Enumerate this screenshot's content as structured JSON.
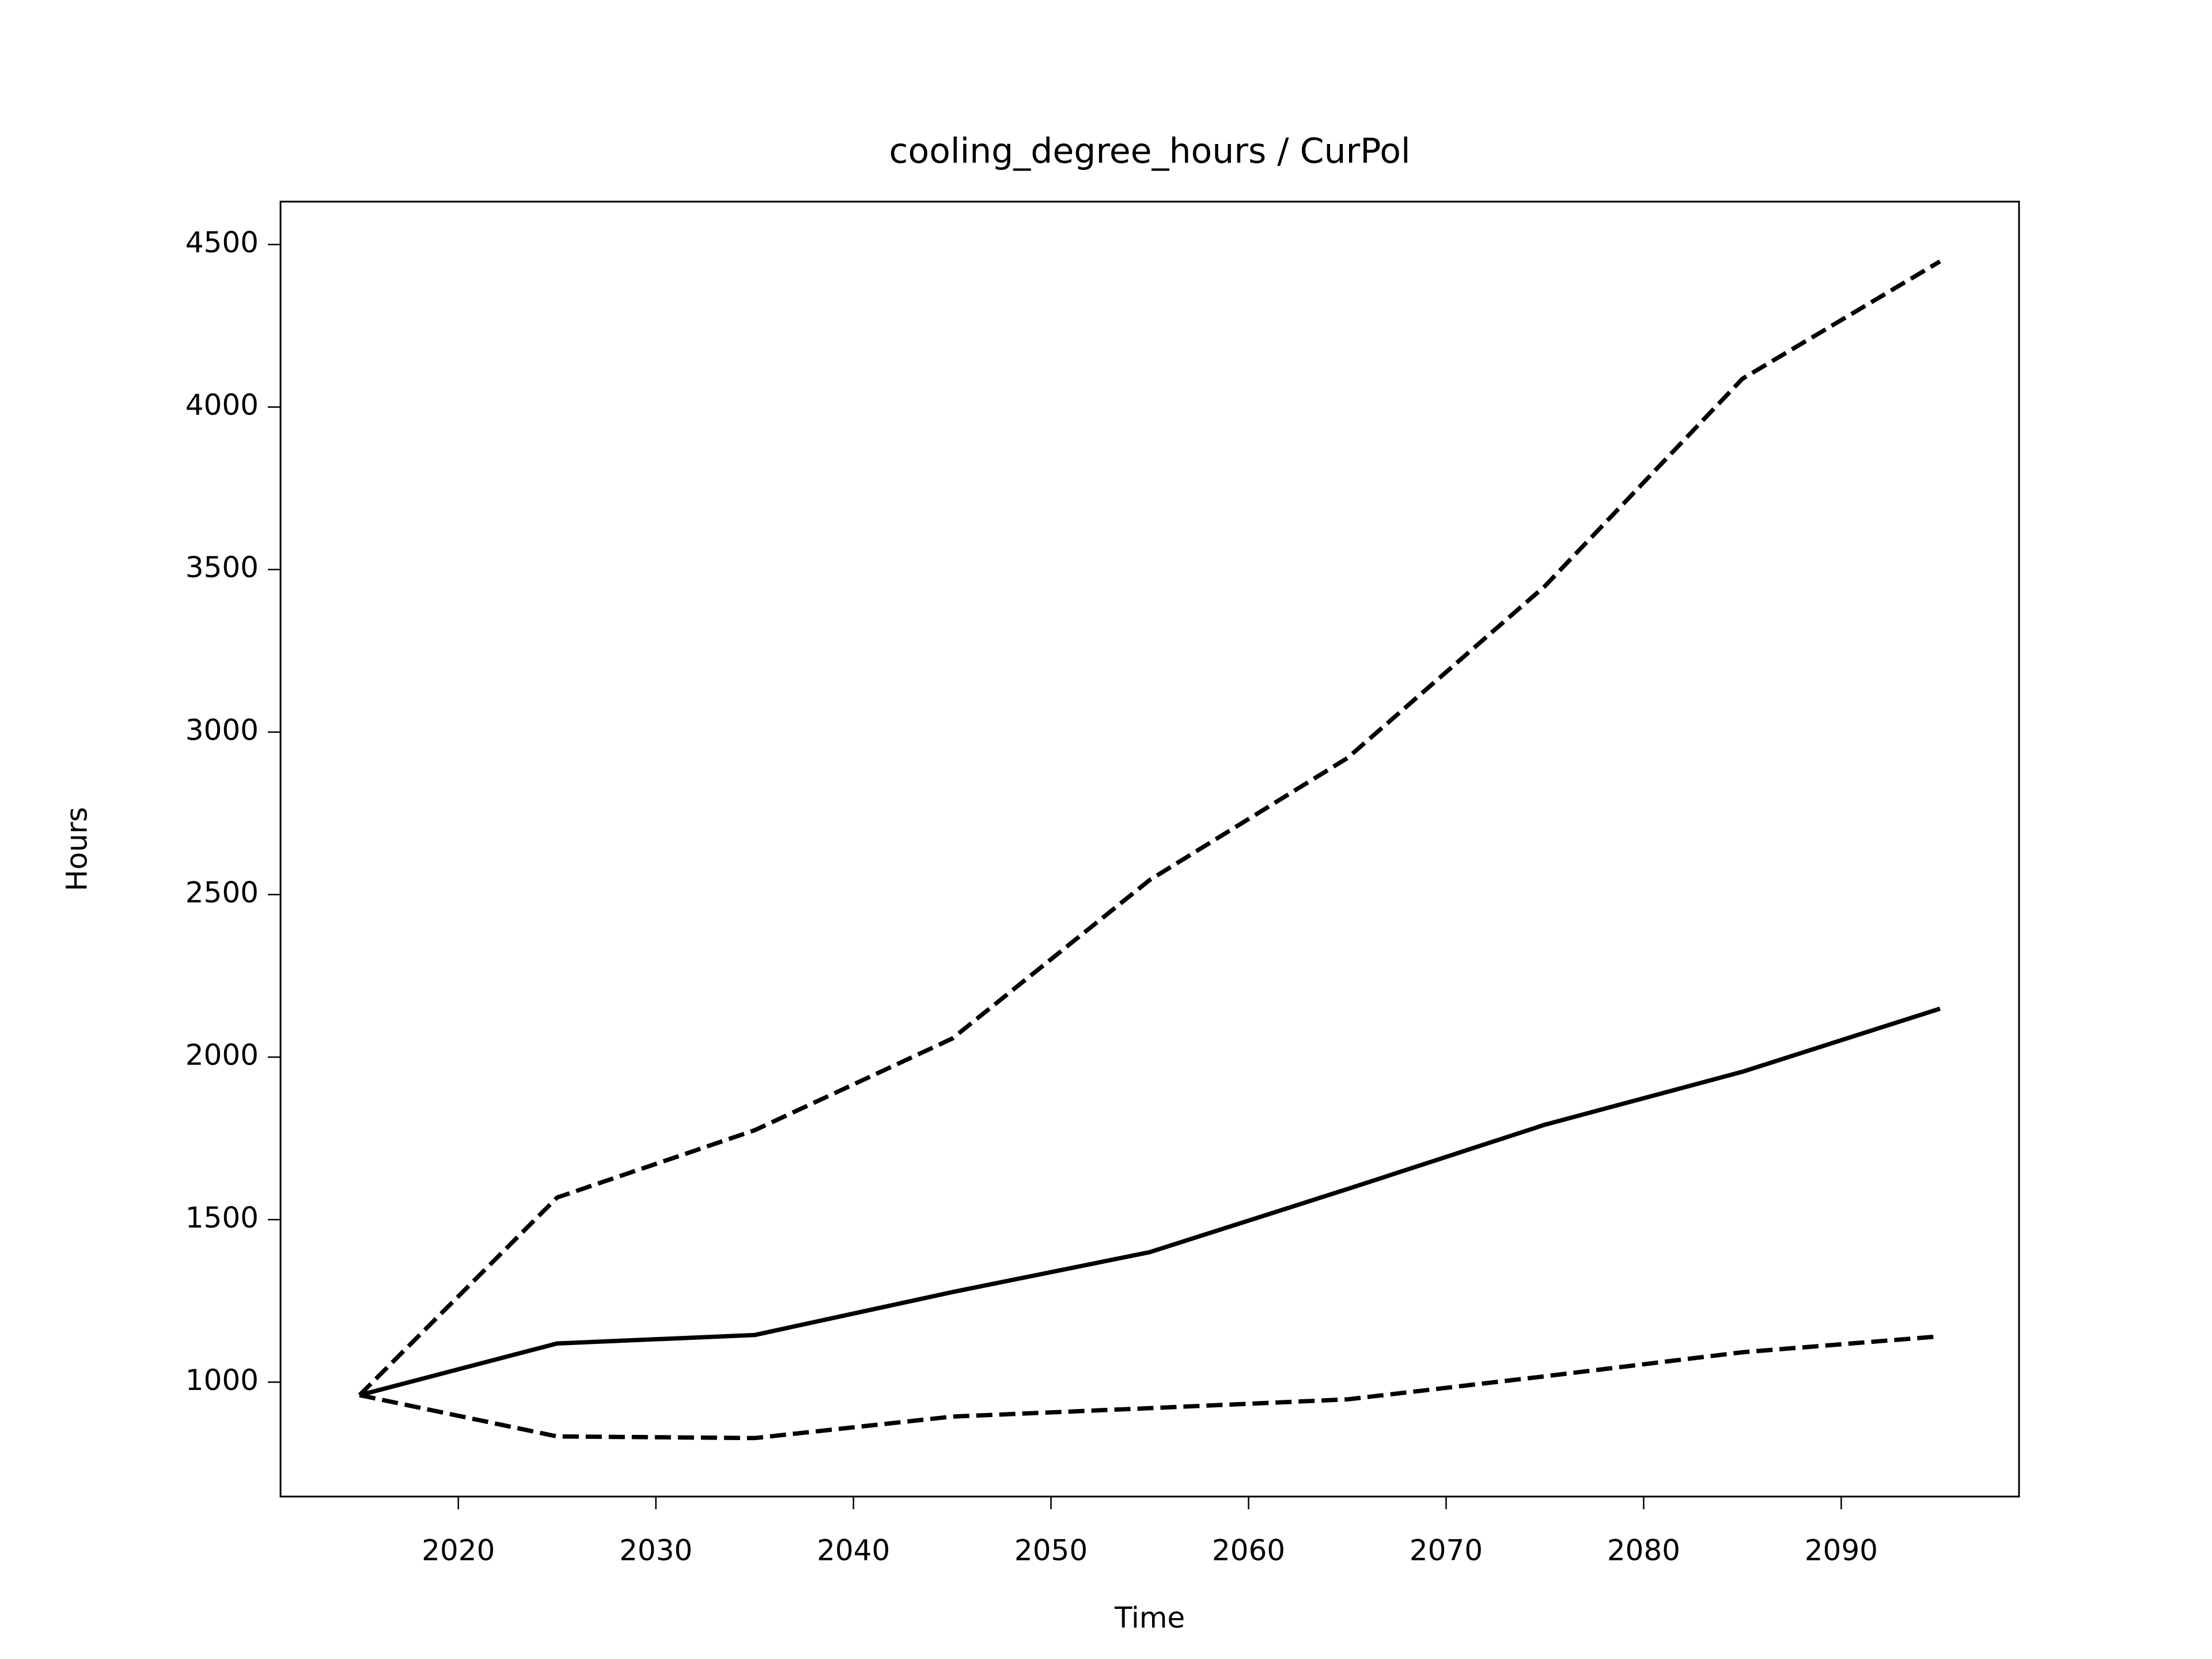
{
  "chart_data": {
    "type": "line",
    "title": "cooling_degree_hours / CurPol",
    "x_label": "Time",
    "y_label": "Hours",
    "x": [
      2015,
      2025,
      2035,
      2045,
      2055,
      2065,
      2075,
      2085,
      2095
    ],
    "series": [
      {
        "color": "#000000",
        "linestyle": "solid",
        "values": [
          960,
          1119,
          1145,
          1277,
          1400,
          1594,
          1792,
          1955,
          2149
        ]
      },
      {
        "color": "#000000",
        "linestyle": "dashed",
        "values": [
          960,
          1568,
          1775,
          2057,
          2545,
          2920,
          3449,
          4087,
          4448
        ]
      },
      {
        "color": "#000000",
        "linestyle": "dashed",
        "values": [
          960,
          833,
          828,
          894,
          920,
          947,
          1018,
          1092,
          1141
        ]
      }
    ],
    "xlim": [
      2011,
      2099
    ],
    "xticks": [
      2020,
      2030,
      2040,
      2050,
      2060,
      2070,
      2080,
      2090
    ],
    "ylim": [
      648,
      4632
    ],
    "yticks": [
      1000,
      1500,
      2000,
      2500,
      3000,
      3500,
      4000,
      4500
    ],
    "grid": false
  }
}
